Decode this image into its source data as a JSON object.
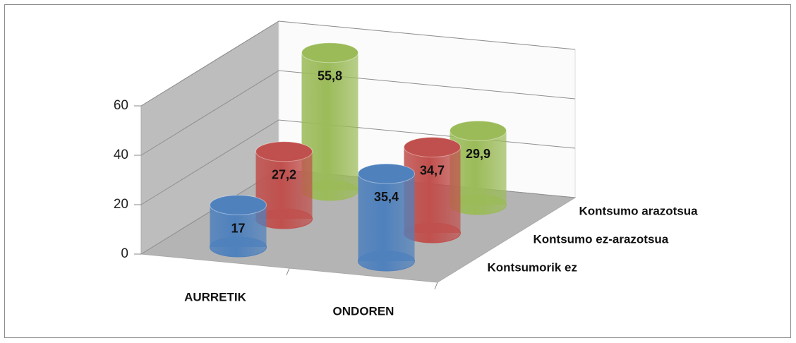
{
  "chart_data": {
    "type": "bar3d",
    "categories": [
      "AURRETIK",
      "ONDOREN"
    ],
    "series": [
      {
        "name": "Kontsumorik ez",
        "color": "#4f81bd",
        "values": [
          17,
          35.4
        ],
        "value_labels": [
          "17",
          "35,4"
        ]
      },
      {
        "name": "Kontsumo ez-arazotsua",
        "color": "#c0504d",
        "values": [
          27.2,
          34.7
        ],
        "value_labels": [
          "27,2",
          "34,7"
        ]
      },
      {
        "name": "Kontsumo arazotsua",
        "color": "#9bbb59",
        "values": [
          55.8,
          29.9
        ],
        "value_labels": [
          "55,8",
          "29,9"
        ]
      }
    ],
    "ylim": [
      0,
      60
    ],
    "yticks": [
      0,
      20,
      40,
      60
    ],
    "grid": true
  }
}
